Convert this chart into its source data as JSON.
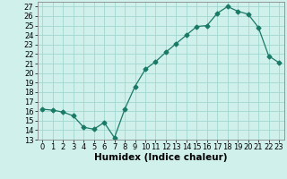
{
  "x": [
    0,
    1,
    2,
    3,
    4,
    5,
    6,
    7,
    8,
    9,
    10,
    11,
    12,
    13,
    14,
    15,
    16,
    17,
    18,
    19,
    20,
    21,
    22,
    23
  ],
  "y": [
    16.2,
    16.1,
    15.9,
    15.5,
    14.3,
    14.1,
    14.8,
    13.2,
    16.2,
    18.6,
    20.4,
    21.2,
    22.2,
    23.1,
    24.0,
    24.9,
    25.0,
    26.3,
    27.0,
    26.5,
    26.2,
    24.8,
    21.8,
    21.1
  ],
  "line_color": "#1a7a66",
  "marker": "D",
  "marker_size": 2.5,
  "bg_color": "#d0f0ec",
  "grid_color": "#a0d8d0",
  "xlabel": "Humidex (Indice chaleur)",
  "xlim": [
    -0.5,
    23.5
  ],
  "ylim": [
    13,
    27.5
  ],
  "yticks": [
    13,
    14,
    15,
    16,
    17,
    18,
    19,
    20,
    21,
    22,
    23,
    24,
    25,
    26,
    27
  ],
  "xticks": [
    0,
    1,
    2,
    3,
    4,
    5,
    6,
    7,
    8,
    9,
    10,
    11,
    12,
    13,
    14,
    15,
    16,
    17,
    18,
    19,
    20,
    21,
    22,
    23
  ],
  "label_fontsize": 7.5,
  "tick_fontsize": 6.0
}
